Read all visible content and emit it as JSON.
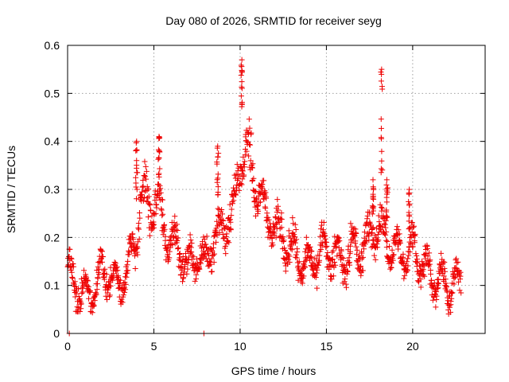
{
  "chart_data": {
    "type": "scatter",
    "title": "Day 080 of 2026, SRMTID for receiver seyg",
    "xlabel": "GPS time / hours",
    "ylabel": "SRMTID / TECUs",
    "xlim": [
      0,
      24.2
    ],
    "ylim": [
      0,
      0.6
    ],
    "xticks": [
      0,
      5,
      10,
      15,
      20
    ],
    "yticks": [
      0,
      0.1,
      0.2,
      0.3,
      0.4,
      0.5,
      0.6
    ],
    "xtick_labels": [
      "0",
      "5",
      "10",
      "15",
      "20"
    ],
    "ytick_labels": [
      "0",
      "0.1",
      "0.2",
      "0.3",
      "0.4",
      "0.5",
      "0.6"
    ],
    "grid": true,
    "marker": "+",
    "color": "#ee0000",
    "profile": {
      "x": [
        0.0,
        0.5,
        1.0,
        1.5,
        2.0,
        2.5,
        3.0,
        3.5,
        4.0,
        4.3,
        4.7,
        5.2,
        5.6,
        6.0,
        6.5,
        7.0,
        7.5,
        8.0,
        8.5,
        9.0,
        9.5,
        10.0,
        10.3,
        10.6,
        11.0,
        11.5,
        12.0,
        12.5,
        13.0,
        13.5,
        14.0,
        14.5,
        15.0,
        15.5,
        16.0,
        16.5,
        17.0,
        17.5,
        18.0,
        18.3,
        18.6,
        19.0,
        19.5,
        20.0,
        20.5,
        21.0,
        21.5,
        22.0,
        22.5,
        22.8
      ],
      "y": [
        0.12,
        0.1,
        0.08,
        0.09,
        0.13,
        0.12,
        0.1,
        0.14,
        0.2,
        0.3,
        0.27,
        0.28,
        0.22,
        0.19,
        0.17,
        0.14,
        0.16,
        0.15,
        0.2,
        0.23,
        0.24,
        0.35,
        0.38,
        0.36,
        0.3,
        0.25,
        0.22,
        0.19,
        0.18,
        0.15,
        0.14,
        0.17,
        0.18,
        0.16,
        0.15,
        0.17,
        0.18,
        0.2,
        0.22,
        0.21,
        0.19,
        0.17,
        0.16,
        0.18,
        0.15,
        0.12,
        0.11,
        0.1,
        0.11,
        0.1
      ]
    },
    "spikes": [
      {
        "x": 4.0,
        "peak": 0.4
      },
      {
        "x": 5.3,
        "peak": 0.41
      },
      {
        "x": 8.7,
        "peak": 0.39
      },
      {
        "x": 10.1,
        "peak": 0.57
      },
      {
        "x": 18.2,
        "peak": 0.55
      },
      {
        "x": 18.5,
        "peak": 0.32
      },
      {
        "x": 19.8,
        "peak": 0.3
      },
      {
        "x": 17.7,
        "peak": 0.32
      }
    ],
    "outliers": [
      {
        "x": 0.1,
        "y": 0.0
      },
      {
        "x": 7.9,
        "y": 0.0
      }
    ]
  }
}
